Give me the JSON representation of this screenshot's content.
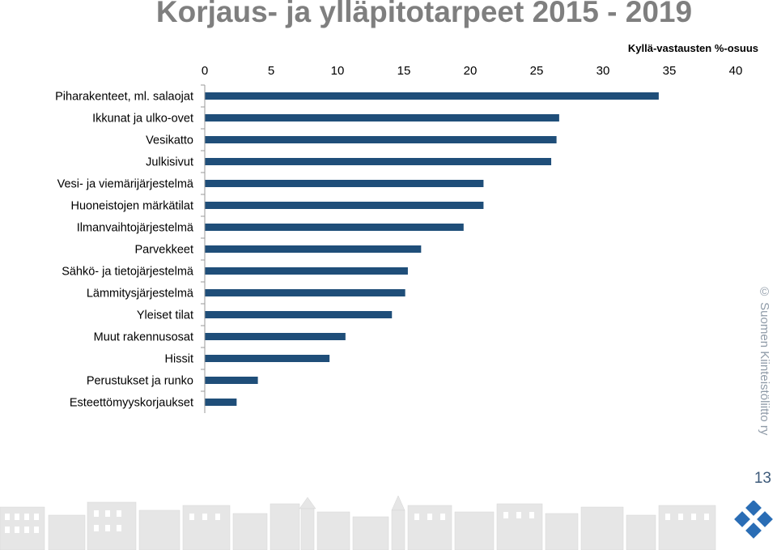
{
  "title": "Korjaus- ja ylläpitotarpeet  2015 - 2019",
  "unit_label": "Kyllä-vastausten %-osuus",
  "copyright": "© Suomen Kiinteistöliitto ry",
  "page_number": "13",
  "colors": {
    "bar": "#1f4e79",
    "title": "#7f7f7f",
    "axis": "#9a9a9a"
  },
  "chart_data": {
    "type": "bar",
    "orientation": "horizontal",
    "title": "Korjaus- ja ylläpitotarpeet  2015 - 2019",
    "xlabel": "Kyllä-vastausten %-osuus",
    "ylabel": "",
    "xlim": [
      0,
      40
    ],
    "x_ticks": [
      0,
      5,
      10,
      15,
      20,
      25,
      30,
      35,
      40
    ],
    "x_axis_position": "top",
    "grid": false,
    "categories": [
      "Piharakenteet, ml. salaojat",
      "Ikkunat ja ulko-ovet",
      "Vesikatto",
      "Julkisivut",
      "Vesi- ja viemärijärjestelmä",
      "Huoneistojen märkätilat",
      "Ilmanvaihtojärjestelmä",
      "Parvekkeet",
      "Sähkö- ja tietojärjestelmä",
      "Lämmitysjärjestelmä",
      "Yleiset tilat",
      "Muut rakennusosat",
      "Hissit",
      "Perustukset ja runko",
      "Esteettömyyskorjaukset"
    ],
    "values": [
      34.2,
      26.7,
      26.5,
      26.1,
      21.0,
      21.0,
      19.5,
      16.3,
      15.3,
      15.1,
      14.1,
      10.6,
      9.4,
      4.0,
      2.4
    ]
  }
}
